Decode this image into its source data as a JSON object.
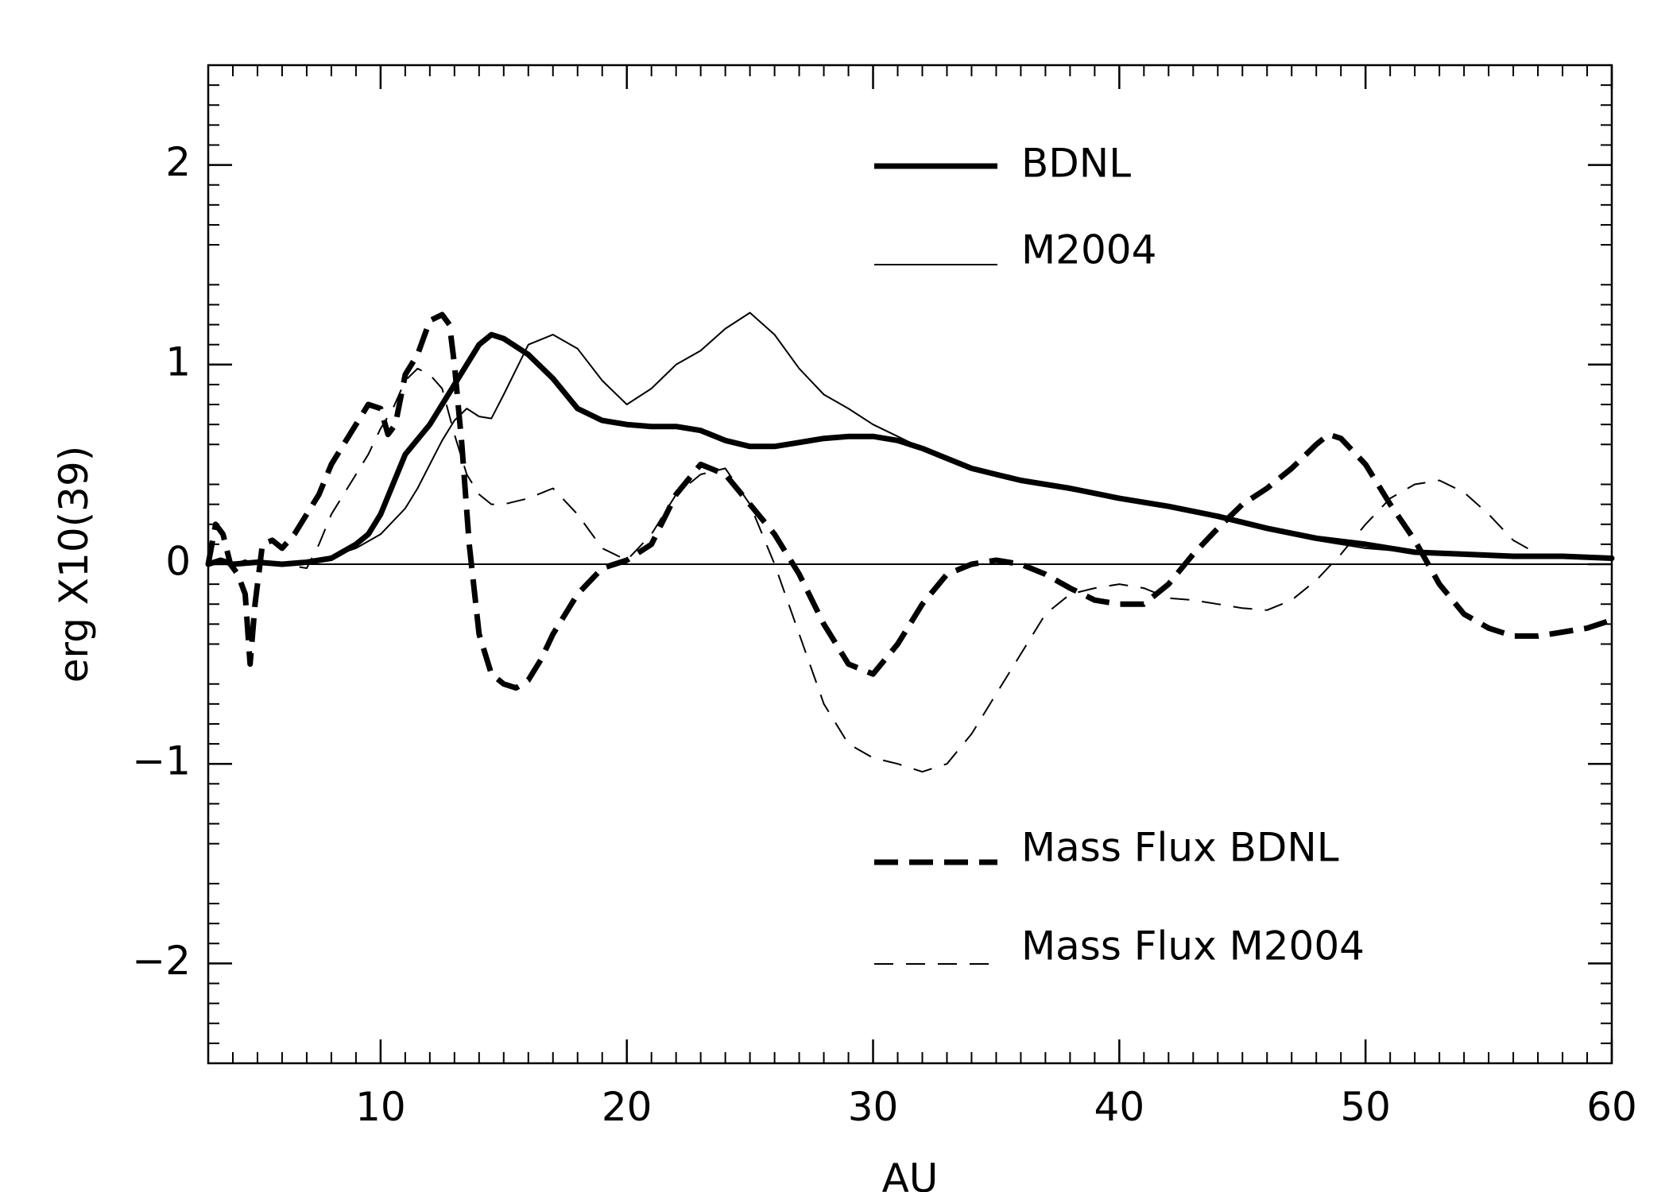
{
  "chart_data": {
    "type": "line",
    "title": "",
    "xlabel": "AU",
    "ylabel": "erg X10(39)",
    "xlim": [
      3,
      60
    ],
    "ylim": [
      -2.5,
      2.5
    ],
    "x_ticks": [
      10,
      20,
      30,
      40,
      50,
      60
    ],
    "x_tick_labels": [
      "10",
      "20",
      "30",
      "40",
      "50",
      "60"
    ],
    "y_ticks": [
      -2,
      -1,
      0,
      1,
      2
    ],
    "y_tick_labels": [
      "−2",
      "−1",
      "0",
      "1",
      "2"
    ],
    "grid": false,
    "zero_line": true,
    "legend_position": "inside, upper-right and lower-right",
    "series": [
      {
        "name": "BDNL",
        "style": "thick-solid",
        "x": [
          3.0,
          3.5,
          4.0,
          5.0,
          6.0,
          7.0,
          8.0,
          9.0,
          9.5,
          10.0,
          10.5,
          11.0,
          12.0,
          13.0,
          14.0,
          14.5,
          15.0,
          16.0,
          17.0,
          18.0,
          19.0,
          20.0,
          21.0,
          22.0,
          23.0,
          24.0,
          25.0,
          26.0,
          27.0,
          28.0,
          29.0,
          30.0,
          31.0,
          32.0,
          33.0,
          34.0,
          35.0,
          36.0,
          38.0,
          40.0,
          42.0,
          44.0,
          46.0,
          48.0,
          50.0,
          52.0,
          54.0,
          56.0,
          58.0,
          60.0
        ],
        "y": [
          0.0,
          0.02,
          0.0,
          0.01,
          0.0,
          0.01,
          0.03,
          0.1,
          0.15,
          0.25,
          0.4,
          0.55,
          0.7,
          0.9,
          1.1,
          1.15,
          1.13,
          1.05,
          0.93,
          0.78,
          0.72,
          0.7,
          0.69,
          0.69,
          0.67,
          0.62,
          0.59,
          0.59,
          0.61,
          0.63,
          0.64,
          0.64,
          0.62,
          0.58,
          0.53,
          0.48,
          0.45,
          0.42,
          0.38,
          0.33,
          0.29,
          0.24,
          0.18,
          0.13,
          0.1,
          0.06,
          0.05,
          0.04,
          0.04,
          0.03
        ]
      },
      {
        "name": "M2004",
        "style": "thin-solid",
        "x": [
          3.0,
          3.5,
          4.0,
          5.0,
          6.0,
          7.0,
          8.0,
          9.0,
          10.0,
          11.0,
          11.5,
          12.0,
          12.5,
          13.0,
          13.5,
          14.0,
          14.5,
          15.0,
          16.0,
          17.0,
          18.0,
          19.0,
          20.0,
          21.0,
          22.0,
          23.0,
          24.0,
          25.0,
          26.0,
          27.0,
          28.0,
          29.0,
          30.0,
          31.0,
          32.0,
          34.0,
          36.0,
          38.0,
          40.0,
          42.0,
          44.0,
          46.0,
          48.0,
          50.0,
          52.0,
          54.0,
          56.0,
          58.0,
          60.0
        ],
        "y": [
          0.0,
          0.02,
          0.0,
          0.01,
          0.0,
          0.01,
          0.04,
          0.08,
          0.15,
          0.28,
          0.38,
          0.5,
          0.62,
          0.72,
          0.78,
          0.74,
          0.73,
          0.85,
          1.1,
          1.15,
          1.08,
          0.92,
          0.8,
          0.88,
          1.0,
          1.07,
          1.18,
          1.26,
          1.15,
          0.98,
          0.85,
          0.78,
          0.7,
          0.64,
          0.58,
          0.48,
          0.43,
          0.37,
          0.33,
          0.29,
          0.23,
          0.17,
          0.12,
          0.08,
          0.06,
          0.05,
          0.04,
          0.04,
          0.03
        ]
      },
      {
        "name": "Mass Flux BDNL",
        "style": "thick-dashed",
        "x": [
          3.0,
          3.3,
          3.6,
          3.9,
          4.2,
          4.5,
          4.7,
          4.9,
          5.2,
          5.6,
          6.0,
          6.5,
          7.0,
          7.5,
          8.0,
          8.5,
          9.0,
          9.5,
          10.0,
          10.3,
          10.6,
          11.0,
          11.5,
          12.0,
          12.5,
          12.8,
          13.0,
          13.3,
          13.6,
          14.0,
          14.5,
          15.0,
          15.5,
          16.0,
          16.5,
          17.0,
          18.0,
          19.0,
          20.0,
          21.0,
          22.0,
          23.0,
          24.0,
          25.0,
          26.0,
          27.0,
          28.0,
          29.0,
          30.0,
          31.0,
          32.0,
          33.0,
          34.0,
          35.0,
          36.0,
          37.0,
          38.0,
          39.0,
          40.0,
          41.0,
          42.0,
          43.0,
          44.0,
          45.0,
          46.0,
          47.0,
          48.0,
          48.5,
          49.0,
          50.0,
          51.0,
          52.0,
          53.0,
          54.0,
          55.0,
          56.0,
          57.0,
          58.0,
          59.0,
          60.0
        ],
        "y": [
          0.0,
          0.2,
          0.15,
          0.0,
          -0.05,
          -0.15,
          -0.5,
          -0.2,
          0.1,
          0.12,
          0.08,
          0.15,
          0.25,
          0.35,
          0.5,
          0.6,
          0.7,
          0.8,
          0.78,
          0.65,
          0.7,
          0.95,
          1.05,
          1.22,
          1.25,
          1.2,
          1.0,
          0.6,
          0.1,
          -0.35,
          -0.55,
          -0.6,
          -0.62,
          -0.58,
          -0.48,
          -0.35,
          -0.15,
          -0.02,
          0.02,
          0.1,
          0.35,
          0.5,
          0.45,
          0.3,
          0.15,
          -0.05,
          -0.3,
          -0.5,
          -0.55,
          -0.4,
          -0.2,
          -0.05,
          0.0,
          0.02,
          0.0,
          -0.05,
          -0.12,
          -0.18,
          -0.2,
          -0.2,
          -0.1,
          0.05,
          0.18,
          0.3,
          0.38,
          0.48,
          0.6,
          0.65,
          0.63,
          0.5,
          0.3,
          0.12,
          -0.1,
          -0.25,
          -0.32,
          -0.36,
          -0.36,
          -0.34,
          -0.32,
          -0.28
        ]
      },
      {
        "name": "Mass Flux M2004",
        "style": "thin-dashed",
        "x": [
          3.0,
          3.5,
          4.0,
          4.5,
          5.0,
          6.0,
          7.0,
          7.5,
          8.0,
          8.5,
          9.0,
          9.5,
          10.0,
          10.5,
          11.0,
          11.5,
          12.0,
          12.5,
          13.0,
          13.5,
          14.0,
          14.5,
          15.0,
          16.0,
          17.0,
          18.0,
          19.0,
          20.0,
          21.0,
          22.0,
          23.0,
          24.0,
          25.0,
          26.0,
          27.0,
          28.0,
          29.0,
          30.0,
          31.0,
          32.0,
          33.0,
          34.0,
          35.0,
          36.0,
          37.0,
          38.0,
          39.0,
          40.0,
          41.0,
          42.0,
          43.0,
          44.0,
          45.0,
          46.0,
          47.0,
          48.0,
          49.0,
          50.0,
          51.0,
          52.0,
          53.0,
          54.0,
          55.0,
          56.0,
          57.0
        ],
        "y": [
          0.0,
          0.03,
          0.0,
          0.02,
          0.0,
          0.0,
          -0.02,
          0.1,
          0.25,
          0.35,
          0.45,
          0.55,
          0.68,
          0.78,
          0.92,
          0.98,
          0.95,
          0.88,
          0.65,
          0.45,
          0.35,
          0.3,
          0.3,
          0.33,
          0.38,
          0.25,
          0.08,
          0.02,
          0.15,
          0.35,
          0.45,
          0.48,
          0.3,
          0.0,
          -0.35,
          -0.7,
          -0.9,
          -0.97,
          -1.0,
          -1.04,
          -1.0,
          -0.85,
          -0.65,
          -0.45,
          -0.25,
          -0.15,
          -0.12,
          -0.1,
          -0.12,
          -0.17,
          -0.18,
          -0.2,
          -0.22,
          -0.23,
          -0.18,
          -0.08,
          0.05,
          0.2,
          0.33,
          0.4,
          0.42,
          0.36,
          0.25,
          0.12,
          0.05
        ]
      }
    ]
  },
  "legend": {
    "items": [
      {
        "label": "BDNL",
        "style": "thick-solid"
      },
      {
        "label": "M2004",
        "style": "thin-solid"
      },
      {
        "label": "Mass Flux BDNL",
        "style": "thick-dashed"
      },
      {
        "label": "Mass Flux M2004",
        "style": "thin-dashed"
      }
    ]
  }
}
